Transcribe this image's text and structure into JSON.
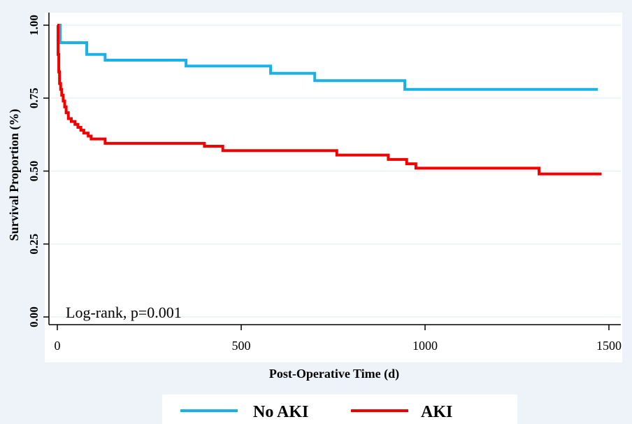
{
  "chart_data": {
    "type": "line",
    "title": "",
    "xlabel": "Post-Operative Time (d)",
    "ylabel": "Survival Proportion (%)",
    "xlim": [
      0,
      1500
    ],
    "ylim": [
      0,
      1
    ],
    "x_ticks": [
      0,
      500,
      1000,
      1500
    ],
    "x_tick_labels": [
      "0",
      "500",
      "1000",
      "1500"
    ],
    "y_ticks": [
      0,
      0.25,
      0.5,
      0.75,
      1.0
    ],
    "y_tick_labels": [
      "0.00",
      "0.25",
      "0.50",
      "0.75",
      "1.00"
    ],
    "grid": "horizontal",
    "legend_position": "bottom",
    "annotation": "Log-rank, p=0.001",
    "series": [
      {
        "name": "No AKI",
        "color": "#19B2E6",
        "step": true,
        "points": [
          [
            0,
            1.0
          ],
          [
            8,
            0.94
          ],
          [
            80,
            0.94
          ],
          [
            80,
            0.9
          ],
          [
            130,
            0.9
          ],
          [
            130,
            0.88
          ],
          [
            350,
            0.88
          ],
          [
            350,
            0.86
          ],
          [
            580,
            0.86
          ],
          [
            580,
            0.835
          ],
          [
            700,
            0.835
          ],
          [
            700,
            0.81
          ],
          [
            945,
            0.81
          ],
          [
            945,
            0.78
          ],
          [
            1470,
            0.78
          ]
        ]
      },
      {
        "name": "AKI",
        "color": "#F20000",
        "step": true,
        "points": [
          [
            0,
            1.0
          ],
          [
            2,
            0.9
          ],
          [
            4,
            0.84
          ],
          [
            6,
            0.8
          ],
          [
            9,
            0.78
          ],
          [
            12,
            0.76
          ],
          [
            16,
            0.74
          ],
          [
            20,
            0.72
          ],
          [
            24,
            0.7
          ],
          [
            30,
            0.68
          ],
          [
            38,
            0.67
          ],
          [
            48,
            0.66
          ],
          [
            56,
            0.65
          ],
          [
            64,
            0.64
          ],
          [
            72,
            0.63
          ],
          [
            84,
            0.62
          ],
          [
            92,
            0.61
          ],
          [
            130,
            0.61
          ],
          [
            130,
            0.595
          ],
          [
            400,
            0.595
          ],
          [
            400,
            0.585
          ],
          [
            450,
            0.585
          ],
          [
            450,
            0.57
          ],
          [
            760,
            0.57
          ],
          [
            760,
            0.555
          ],
          [
            900,
            0.555
          ],
          [
            900,
            0.54
          ],
          [
            950,
            0.54
          ],
          [
            950,
            0.525
          ],
          [
            975,
            0.525
          ],
          [
            975,
            0.51
          ],
          [
            1310,
            0.51
          ],
          [
            1310,
            0.49
          ],
          [
            1480,
            0.49
          ]
        ]
      }
    ]
  }
}
